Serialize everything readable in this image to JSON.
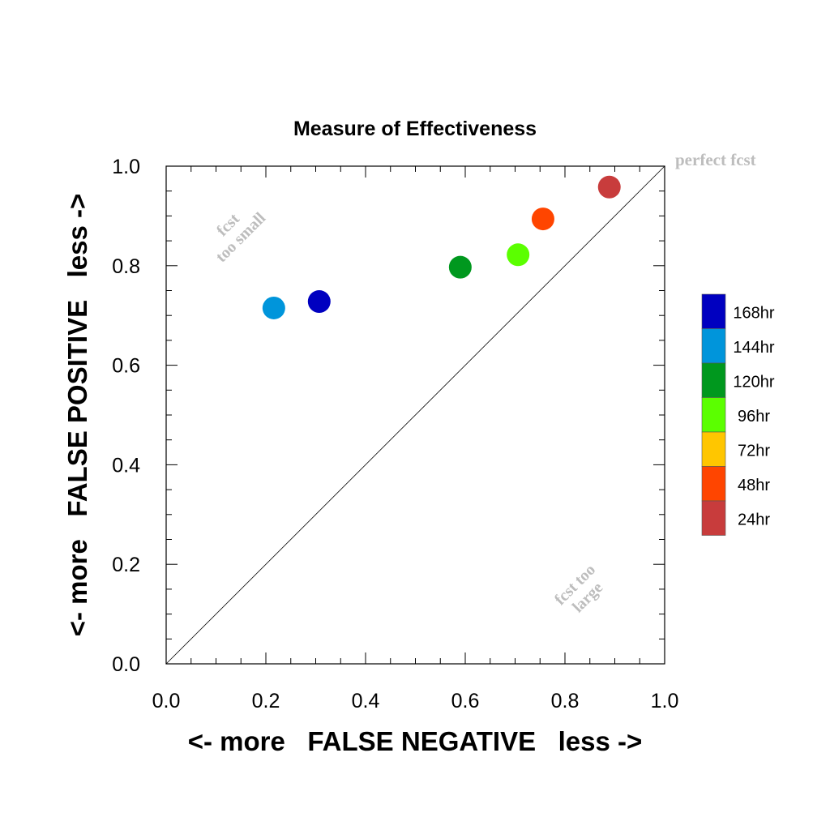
{
  "chart_data": {
    "type": "scatter",
    "title": "Measure of Effectiveness",
    "xlabel": "<- more   FALSE NEGATIVE   less ->",
    "ylabel": "<- more   FALSE POSITIVE   less ->",
    "xlim": [
      0.0,
      1.0
    ],
    "ylim": [
      0.0,
      1.0
    ],
    "x_ticks": [
      "0.0",
      "0.2",
      "0.4",
      "0.6",
      "0.8",
      "1.0"
    ],
    "y_ticks": [
      "0.0",
      "0.2",
      "0.4",
      "0.6",
      "0.8",
      "1.0"
    ],
    "grid": false,
    "diagonal_reference_line": true,
    "annotations": {
      "perfect": "perfect fcst",
      "too_small_line1": "fcst",
      "too_small_line2": "too small",
      "too_large_line1": "fcst too",
      "too_large_line2": "large"
    },
    "legend_position": "right",
    "legend": [
      {
        "label": "168hr",
        "color": "#0000C0"
      },
      {
        "label": "144hr",
        "color": "#0095DB"
      },
      {
        "label": "120hr",
        "color": "#00981E"
      },
      {
        "label": "96hr",
        "color": "#5BFF00"
      },
      {
        "label": "72hr",
        "color": "#FFC600"
      },
      {
        "label": "48hr",
        "color": "#FF4500"
      },
      {
        "label": "24hr",
        "color": "#C83C3C"
      }
    ],
    "points": [
      {
        "lead": "168hr",
        "x": 0.307,
        "y": 0.728,
        "color": "#0000C0"
      },
      {
        "lead": "144hr",
        "x": 0.216,
        "y": 0.715,
        "color": "#0095DB"
      },
      {
        "lead": "120hr",
        "x": 0.59,
        "y": 0.797,
        "color": "#00981E"
      },
      {
        "lead": "96hr",
        "x": 0.706,
        "y": 0.822,
        "color": "#5BFF00"
      },
      {
        "lead": "48hr",
        "x": 0.756,
        "y": 0.894,
        "color": "#FF4500"
      },
      {
        "lead": "24hr",
        "x": 0.889,
        "y": 0.958,
        "color": "#C83C3C"
      }
    ]
  }
}
